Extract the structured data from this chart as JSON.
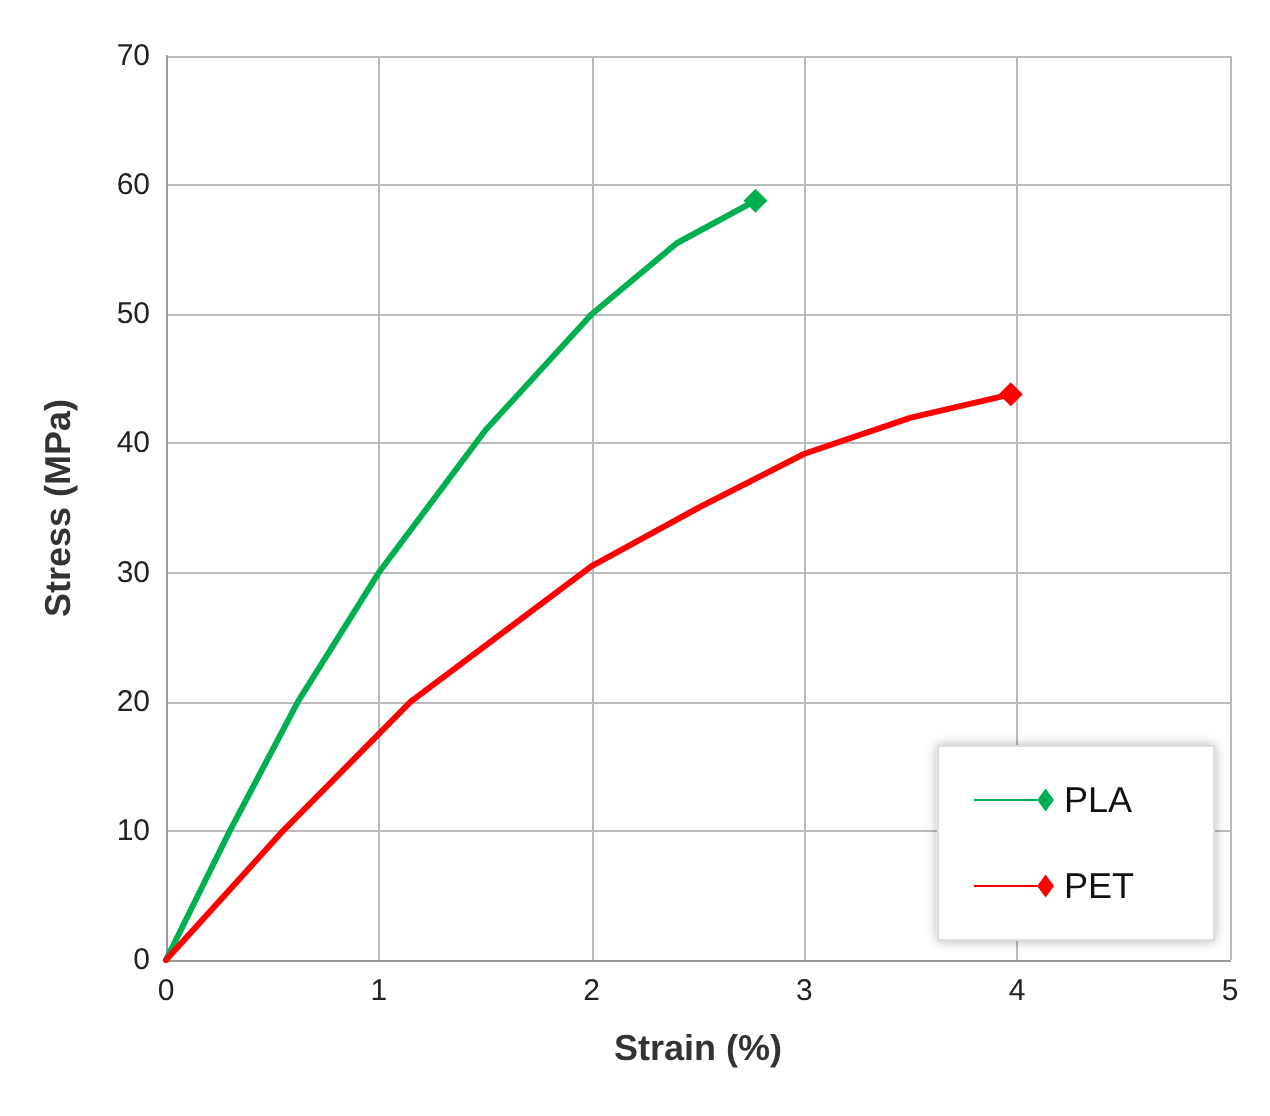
{
  "chart_data": {
    "type": "line",
    "xlabel": "Strain (%)",
    "ylabel": "Stress (MPa)",
    "xlim": [
      0,
      5
    ],
    "xticks": [
      0,
      1,
      2,
      3,
      4,
      5
    ],
    "ylim": [
      0,
      70
    ],
    "yticks": [
      0,
      10,
      20,
      30,
      40,
      50,
      60,
      70
    ],
    "grid": true,
    "legend": "bottom right",
    "line_style": "solid",
    "series": [
      {
        "name": "PLA",
        "color": "#00b050",
        "x": [
          0,
          0.3,
          0.62,
          1,
          1.5,
          2,
          2.4,
          2.77
        ],
        "values": [
          0,
          10,
          20,
          30,
          41,
          50,
          55.5,
          58.8
        ]
      },
      {
        "name": "PET",
        "color": "#ff0000",
        "x": [
          0,
          0.55,
          1.15,
          2,
          2.5,
          3,
          3.5,
          3.97
        ],
        "values": [
          0,
          10,
          20,
          30.5,
          35,
          39.2,
          42,
          43.8
        ]
      }
    ]
  }
}
